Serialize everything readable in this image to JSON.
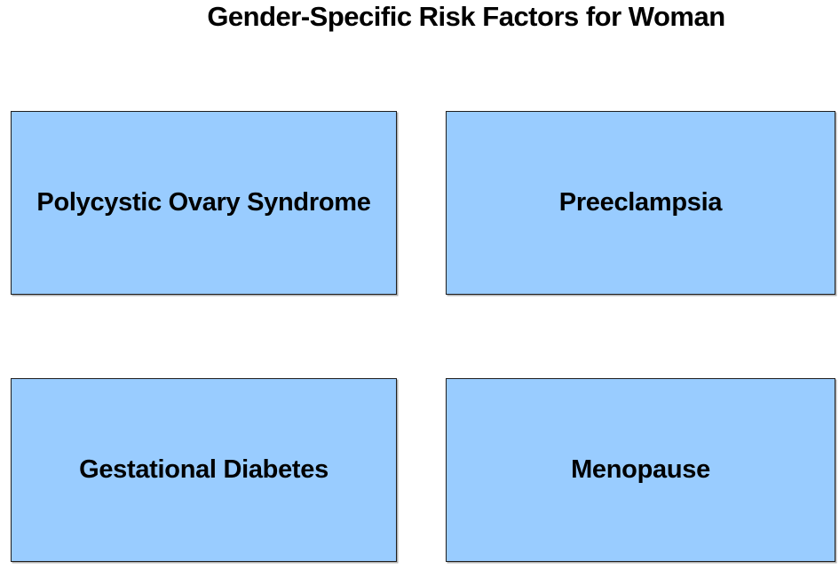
{
  "diagram": {
    "title": "Gender-Specific Risk Factors for Woman",
    "title_color": "#000000",
    "box_fill_color": "#99CCFF",
    "box_border_color": "#1f1f1f",
    "background_color": "#ffffff",
    "boxes": [
      {
        "label": "Polycystic Ovary Syndrome"
      },
      {
        "label": "Preeclampsia"
      },
      {
        "label": "Gestational Diabetes"
      },
      {
        "label": "Menopause"
      }
    ]
  }
}
